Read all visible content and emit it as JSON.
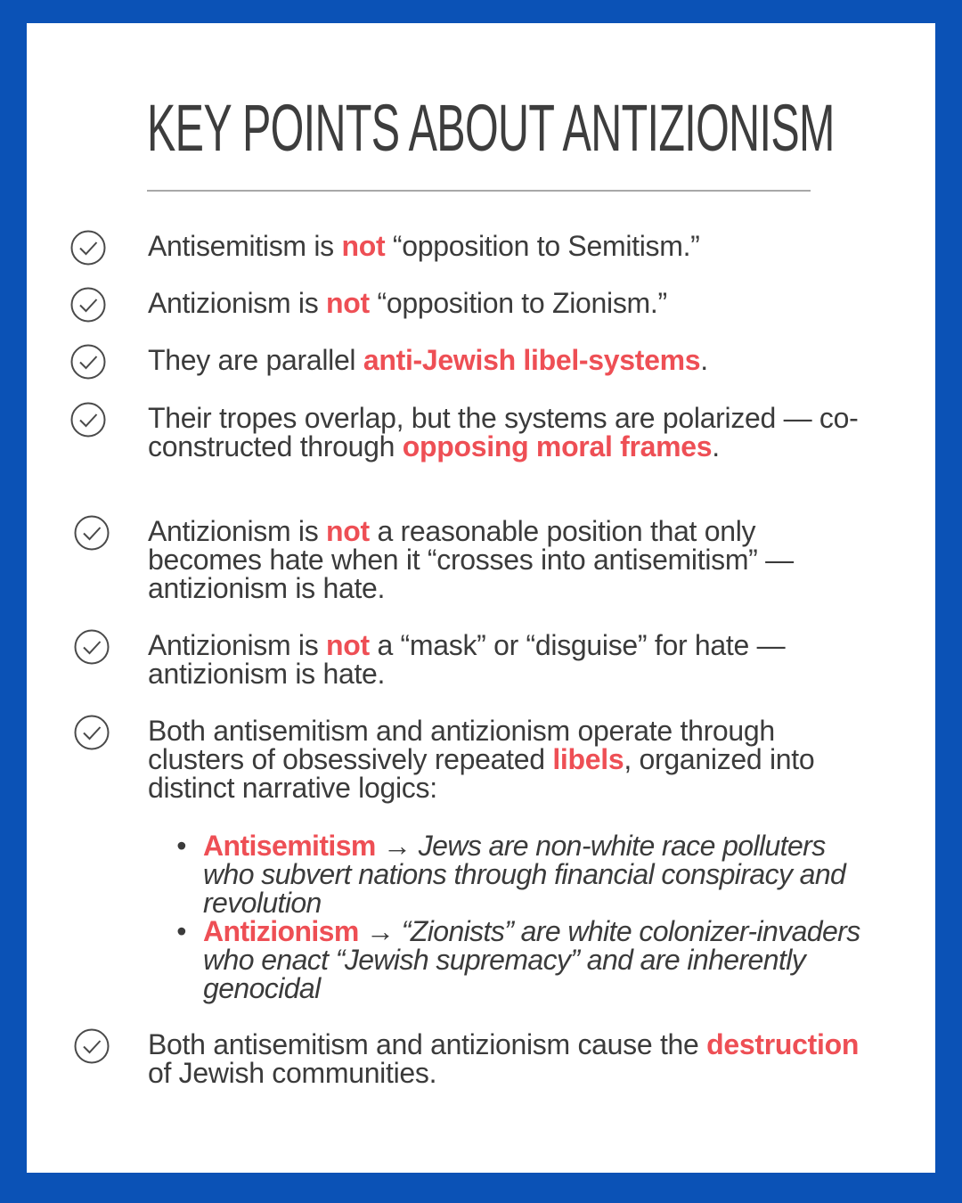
{
  "title": "KEY POINTS ABOUT ANTIZIONISM",
  "colors": {
    "border": "#0b52b6",
    "highlight": "#ee4f55",
    "text": "#3b3b3b"
  },
  "icon": "check-circle-icon",
  "points": [
    {
      "a": "Antisemitism is ",
      "h": "not",
      "b": " “opposition to Semitism.”"
    },
    {
      "a": "Antizionism is ",
      "h": "not",
      "b": " “opposition to Zionism.”"
    },
    {
      "a": "They are parallel ",
      "h": "anti-Jewish libel-systems",
      "b": "."
    },
    {
      "a": "Their tropes overlap, but the systems are polarized — co-constructed through ",
      "h": "opposing moral frames",
      "b": "."
    },
    {
      "a": "Antizionism is ",
      "h": "not",
      "b": " a reasonable position that only becomes hate when it “crosses into antisemitism” — antizionism is hate."
    },
    {
      "a": "Antizionism is ",
      "h": "not",
      "b": " a “mask” or “disguise” for hate — antizionism is hate."
    },
    {
      "a": "Both antisemitism and antizionism operate through clusters of obsessively repeated ",
      "h": "libels",
      "b": ", organized into distinct narrative logics:"
    },
    {
      "a": "Both antisemitism and antizionism cause the ",
      "h": "destruction",
      "b": " of Jewish communities."
    }
  ],
  "bullets": [
    {
      "label": "Antisemitism",
      "arrow": "→",
      "text": "Jews are non-white race polluters who subvert nations through financial conspiracy and revolution"
    },
    {
      "label": "Antizionism",
      "arrow": "→",
      "text": "“Zionists” are white colonizer-invaders who enact “Jewish supremacy” and are inherently genocidal"
    }
  ]
}
